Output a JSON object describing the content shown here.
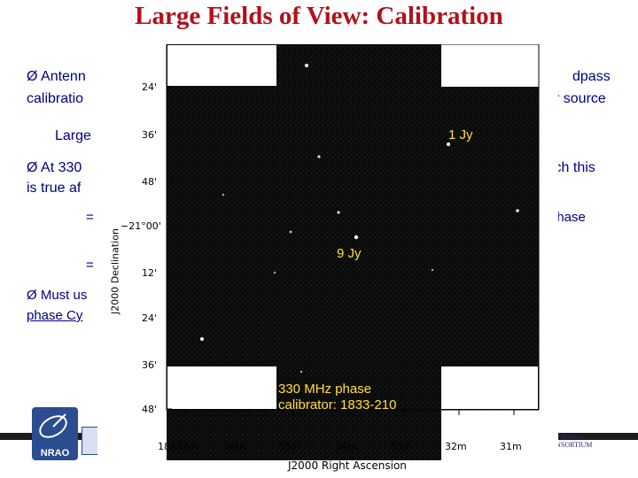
{
  "slide": {
    "title": "Large Fields of View: Calibration",
    "bullets": [
      {
        "arrow": "Ø",
        "line1": "Antenn",
        "line1_tail": "dpass",
        "line2": "calibratio",
        "line2_tail": "r source"
      },
      {
        "text": "Large"
      },
      {
        "arrow": "Ø",
        "line1": "At 330",
        "line1_tail": "ich this",
        "line2": "is true af"
      },
      {
        "sub": "=",
        "tail": "phase"
      },
      {
        "sub": "="
      },
      {
        "arrow": "Ø",
        "line1": "Must us",
        "line2": "phase Cy"
      }
    ]
  },
  "figure": {
    "annotations": {
      "top_source": "1 Jy",
      "center_source": "9 Jy",
      "calibrator_line1": "330 MHz phase",
      "calibrator_line2": "calibrator: 1833-210"
    },
    "ylabel": "J2000 Declination",
    "xlabel": "J2000 Right Ascension",
    "yticks": [
      "24'",
      "36'",
      "48'",
      "−21°00'",
      "12'",
      "24'",
      "36'",
      "48'"
    ],
    "xticks": [
      "18h37m",
      "36m",
      "35m",
      "34m",
      "33m",
      "32m",
      "31m"
    ],
    "colors": {
      "sky": "#0a0a0a",
      "annotation": "#ffe033"
    }
  },
  "logos": {
    "left": "NRAO",
    "right_line1": "New Mexico",
    "right_line2": "CONSORTIUM"
  }
}
